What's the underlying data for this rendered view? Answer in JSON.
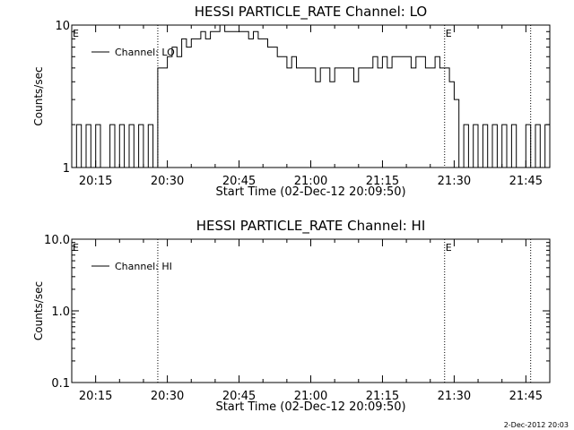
{
  "footer": {
    "stamp": "2-Dec-2012 20:03"
  },
  "chart_data": [
    {
      "type": "line",
      "title": "HESSI PARTICLE_RATE Channel: LO",
      "xlabel": "Start Time (02-Dec-12 20:09:50)",
      "ylabel": "Counts/sec",
      "yscale": "log",
      "ylim": [
        1,
        10
      ],
      "yticks": [
        {
          "v": 1,
          "label": "1"
        },
        {
          "v": 10,
          "label": "10"
        }
      ],
      "xlim": [
        "20:10",
        "21:50"
      ],
      "xticks": [
        "20:15",
        "20:30",
        "20:45",
        "21:00",
        "21:15",
        "21:30",
        "21:45"
      ],
      "vlines": [
        "20:28",
        "21:28",
        "21:46"
      ],
      "markers": [
        {
          "label": "E",
          "x": "20:10"
        },
        {
          "label": "E",
          "x": "21:28"
        }
      ],
      "legend": {
        "entries": [
          "Channel: LO"
        ],
        "position": "top-left"
      },
      "grid": false,
      "series": [
        {
          "name": "Channel: LO",
          "x": [
            "20:10",
            "20:11",
            "20:12",
            "20:13",
            "20:14",
            "20:15",
            "20:16",
            "20:17",
            "20:18",
            "20:19",
            "20:20",
            "20:21",
            "20:22",
            "20:23",
            "20:24",
            "20:25",
            "20:26",
            "20:27",
            "20:28",
            "20:29",
            "20:30",
            "20:31",
            "20:32",
            "20:33",
            "20:34",
            "20:35",
            "20:36",
            "20:37",
            "20:38",
            "20:39",
            "20:40",
            "20:41",
            "20:42",
            "20:43",
            "20:44",
            "20:45",
            "20:46",
            "20:47",
            "20:48",
            "20:49",
            "20:50",
            "20:51",
            "20:52",
            "20:53",
            "20:54",
            "20:55",
            "20:56",
            "20:57",
            "20:58",
            "20:59",
            "21:00",
            "21:01",
            "21:02",
            "21:03",
            "21:04",
            "21:05",
            "21:06",
            "21:07",
            "21:08",
            "21:09",
            "21:10",
            "21:11",
            "21:12",
            "21:13",
            "21:14",
            "21:15",
            "21:16",
            "21:17",
            "21:18",
            "21:19",
            "21:20",
            "21:21",
            "21:22",
            "21:23",
            "21:24",
            "21:25",
            "21:26",
            "21:27",
            "21:28",
            "21:29",
            "21:30",
            "21:31",
            "21:32",
            "21:33",
            "21:34",
            "21:35",
            "21:36",
            "21:37",
            "21:38",
            "21:39",
            "21:40",
            "21:41",
            "21:42",
            "21:43",
            "21:44",
            "21:45",
            "21:46",
            "21:47",
            "21:48",
            "21:49",
            "21:50"
          ],
          "y": [
            1,
            2,
            1,
            2,
            1,
            2,
            1,
            1,
            2,
            1,
            2,
            1,
            2,
            1,
            2,
            1,
            2,
            1,
            5,
            5,
            6,
            7,
            6,
            8,
            7,
            8,
            8,
            9,
            8,
            9,
            9,
            10,
            9,
            9,
            9,
            9,
            9,
            8,
            9,
            8,
            8,
            7,
            7,
            6,
            6,
            5,
            6,
            5,
            5,
            5,
            5,
            4,
            5,
            5,
            4,
            5,
            5,
            5,
            5,
            4,
            5,
            5,
            5,
            6,
            5,
            6,
            5,
            6,
            6,
            6,
            6,
            5,
            6,
            6,
            5,
            5,
            6,
            5,
            5,
            4,
            3,
            1,
            2,
            1,
            2,
            1,
            2,
            1,
            2,
            1,
            2,
            1,
            2,
            1,
            1,
            2,
            1,
            2,
            1,
            2,
            1
          ]
        }
      ]
    },
    {
      "type": "line",
      "title": "HESSI PARTICLE_RATE Channel: HI",
      "xlabel": "Start Time (02-Dec-12 20:09:50)",
      "ylabel": "Counts/sec",
      "yscale": "log",
      "ylim": [
        0.1,
        10
      ],
      "yticks": [
        {
          "v": 0.1,
          "label": "0.1"
        },
        {
          "v": 1,
          "label": "1.0"
        },
        {
          "v": 10,
          "label": "10.0"
        }
      ],
      "xlim": [
        "20:10",
        "21:50"
      ],
      "xticks": [
        "20:15",
        "20:30",
        "20:45",
        "21:00",
        "21:15",
        "21:30",
        "21:45"
      ],
      "vlines": [
        "20:28",
        "21:28",
        "21:46"
      ],
      "markers": [
        {
          "label": "E",
          "x": "20:10"
        },
        {
          "label": "E",
          "x": "21:28"
        }
      ],
      "legend": {
        "entries": [
          "Channel: HI"
        ],
        "position": "top-left"
      },
      "grid": false,
      "series": [
        {
          "name": "Channel: HI",
          "x": [],
          "y": []
        }
      ]
    }
  ]
}
